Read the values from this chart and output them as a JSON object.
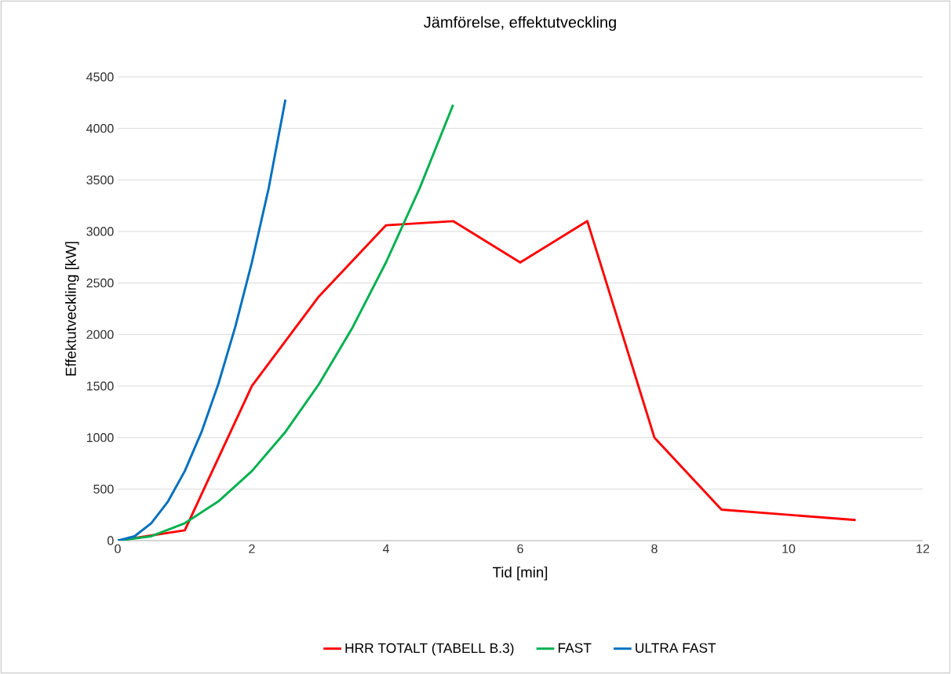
{
  "chart_data": {
    "type": "line",
    "title": "Jämförelse, effektutveckling",
    "xlabel": "Tid [min]",
    "ylabel": "Effektutveckling [kW]",
    "xlim": [
      0,
      12
    ],
    "xticks": [
      0,
      2,
      4,
      6,
      8,
      10,
      12
    ],
    "ylim": [
      0,
      4500
    ],
    "yticks": [
      0,
      500,
      1000,
      1500,
      2000,
      2500,
      3000,
      3500,
      4000,
      4500
    ],
    "grid": "y",
    "legend": "bottom",
    "marker": "none",
    "line_style": "solid",
    "series": [
      {
        "name": "HRR TOTALT (TABELL B.3)",
        "color": "#ff0000",
        "x": [
          0,
          1,
          2,
          3,
          4,
          5,
          6,
          7,
          8,
          9,
          11
        ],
        "values": [
          0,
          100,
          1500,
          2370,
          3060,
          3100,
          2700,
          3100,
          1000,
          300,
          200
        ]
      },
      {
        "name": "FAST",
        "color": "#00b050",
        "x": [
          0,
          0.5,
          1,
          1.5,
          2,
          2.5,
          3,
          3.5,
          4,
          4.5,
          5
        ],
        "values": [
          0,
          42,
          169,
          380,
          675,
          1055,
          1519,
          2068,
          2701,
          3418,
          4230
        ]
      },
      {
        "name": "ULTRA FAST",
        "color": "#0070c0",
        "x": [
          0,
          0.25,
          0.5,
          0.75,
          1,
          1.25,
          1.5,
          1.75,
          2,
          2.25,
          2.5
        ],
        "values": [
          0,
          42,
          169,
          380,
          675,
          1055,
          1519,
          2068,
          2701,
          3418,
          4280
        ]
      }
    ]
  }
}
